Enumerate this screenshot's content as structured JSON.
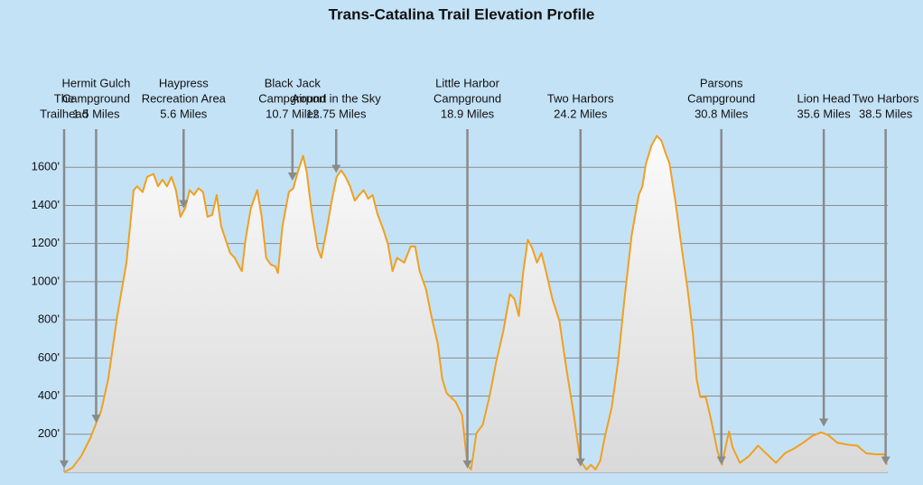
{
  "chart_data": {
    "type": "area",
    "title": "Trans-Catalina Trail Elevation Profile",
    "color": "#f0a020",
    "background": "#c4e2f6",
    "grid": true,
    "xlim": [
      0,
      38.6
    ],
    "ylim": [
      0,
      1800
    ],
    "yticks": [
      {
        "value": 200,
        "label": "200'"
      },
      {
        "value": 400,
        "label": "400'"
      },
      {
        "value": 600,
        "label": "600'"
      },
      {
        "value": 800,
        "label": "800'"
      },
      {
        "value": 1000,
        "label": "1000'"
      },
      {
        "value": 1200,
        "label": "1200'"
      },
      {
        "value": 1400,
        "label": "1400'"
      },
      {
        "value": 1600,
        "label": "1600'"
      }
    ],
    "x": [
      0,
      0.38,
      0.8,
      1.23,
      1.56,
      1.73,
      2.07,
      2.49,
      2.92,
      3.26,
      3.42,
      3.68,
      3.89,
      4.19,
      4.4,
      4.61,
      4.82,
      5.03,
      5.24,
      5.45,
      5.67,
      5.88,
      6.09,
      6.3,
      6.51,
      6.72,
      6.94,
      7.15,
      7.36,
      7.57,
      7.78,
      8.0,
      8.2,
      8.33,
      8.5,
      8.75,
      9.05,
      9.26,
      9.47,
      9.68,
      9.9,
      10.02,
      10.23,
      10.53,
      10.74,
      10.95,
      11.2,
      11.37,
      11.58,
      11.88,
      12.05,
      12.3,
      12.56,
      12.77,
      12.98,
      13.19,
      13.4,
      13.62,
      13.83,
      14.04,
      14.25,
      14.46,
      14.67,
      14.97,
      15.18,
      15.39,
      15.6,
      15.94,
      16.24,
      16.45,
      16.66,
      16.96,
      17.21,
      17.51,
      17.72,
      17.93,
      18.35,
      18.65,
      18.9,
      19.07,
      19.32,
      19.62,
      19.92,
      20.25,
      20.59,
      20.89,
      21.1,
      21.31,
      21.52,
      21.73,
      21.94,
      22.16,
      22.37,
      22.58,
      22.88,
      23.21,
      23.55,
      23.89,
      24.19,
      24.48,
      24.69,
      24.9,
      25.12,
      25.33,
      25.67,
      25.96,
      26.26,
      26.6,
      26.93,
      27.1,
      27.27,
      27.53,
      27.78,
      27.99,
      28.2,
      28.37,
      28.63,
      28.92,
      29.22,
      29.47,
      29.64,
      29.81,
      30.07,
      30.32,
      30.62,
      30.83,
      31.04,
      31.16,
      31.33,
      31.67,
      32.09,
      32.52,
      32.94,
      33.36,
      33.78,
      34.21,
      34.63,
      35.05,
      35.48,
      35.81,
      36.24,
      36.74,
      37.17,
      37.59,
      38.01,
      38.44,
      38.56
    ],
    "values": [
      0,
      24,
      85,
      180,
      275,
      320,
      490,
      820,
      1100,
      1480,
      1500,
      1470,
      1550,
      1565,
      1500,
      1535,
      1500,
      1550,
      1480,
      1340,
      1385,
      1480,
      1455,
      1490,
      1470,
      1340,
      1350,
      1455,
      1290,
      1220,
      1150,
      1125,
      1080,
      1055,
      1220,
      1385,
      1480,
      1340,
      1125,
      1090,
      1080,
      1045,
      1290,
      1470,
      1490,
      1575,
      1660,
      1575,
      1385,
      1175,
      1125,
      1270,
      1435,
      1550,
      1585,
      1550,
      1500,
      1425,
      1455,
      1480,
      1435,
      1455,
      1360,
      1270,
      1195,
      1055,
      1125,
      1100,
      1185,
      1185,
      1055,
      960,
      820,
      675,
      490,
      415,
      370,
      300,
      40,
      15,
      205,
      250,
      390,
      580,
      745,
      935,
      910,
      820,
      1055,
      1220,
      1175,
      1100,
      1150,
      1055,
      910,
      795,
      535,
      300,
      60,
      15,
      40,
      15,
      60,
      180,
      345,
      580,
      910,
      1245,
      1455,
      1500,
      1620,
      1715,
      1765,
      1740,
      1670,
      1620,
      1435,
      1195,
      960,
      725,
      490,
      395,
      395,
      275,
      110,
      40,
      155,
      215,
      130,
      50,
      85,
      140,
      95,
      50,
      100,
      125,
      155,
      190,
      210,
      195,
      155,
      145,
      140,
      100,
      95,
      95,
      40
    ],
    "annotations": [
      {
        "label": [
          "The",
          "Trailhead"
        ],
        "x": 0,
        "y": 20
      },
      {
        "label": [
          "Hermit Gulch",
          "Campground",
          "1.5 Miles"
        ],
        "x": 1.5,
        "y": 260
      },
      {
        "label": [
          "Haypress",
          "Recreation Area",
          "5.6 Miles"
        ],
        "x": 5.6,
        "y": 1385
      },
      {
        "label": [
          "Black Jack",
          "Campground",
          "10.7 Miles"
        ],
        "x": 10.7,
        "y": 1530
      },
      {
        "label": [
          "Airport in the Sky",
          "12.75 Miles"
        ],
        "x": 12.75,
        "y": 1570
      },
      {
        "label": [
          "Little Harbor",
          "Campground",
          "18.9 Miles"
        ],
        "x": 18.9,
        "y": 20
      },
      {
        "label": [
          "Two Harbors",
          "24.2 Miles"
        ],
        "x": 24.2,
        "y": 30
      },
      {
        "label": [
          "Parsons",
          "Campground",
          "30.8 Miles"
        ],
        "x": 30.8,
        "y": 40
      },
      {
        "label": [
          "Lion Head",
          "35.6 Miles"
        ],
        "x": 35.6,
        "y": 240
      },
      {
        "label": [
          "Two Harbors",
          "38.5 Miles"
        ],
        "x": 38.5,
        "y": 40
      }
    ]
  }
}
